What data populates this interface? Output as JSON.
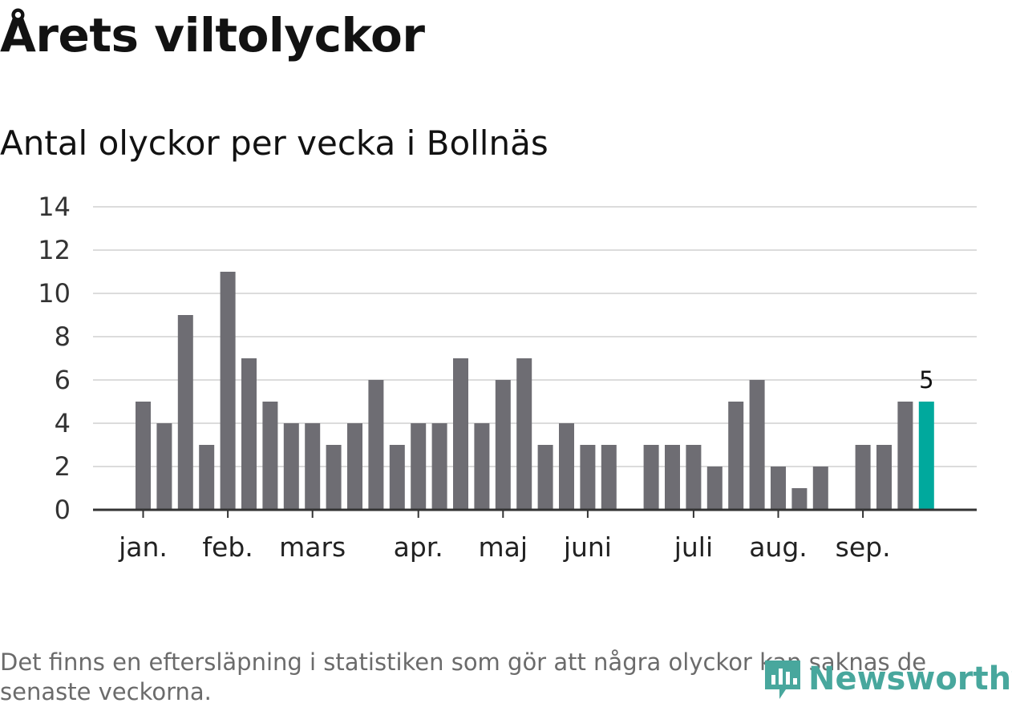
{
  "title": "Årets viltolyckor",
  "subtitle": "Antal olyckor per vecka i Bollnäs",
  "footnote": "Det finns en eftersläpning i statistiken som gör att några olyckor kan saknas de senaste veckorna.",
  "brand": {
    "name": "Newsworthy",
    "color": "#48a79d"
  },
  "colors": {
    "bar": "#6e6d73",
    "highlight": "#00a99d",
    "grid": "#dcdcdc",
    "axis": "#333333"
  },
  "chart_data": {
    "type": "bar",
    "values": [
      5,
      4,
      9,
      3,
      11,
      7,
      5,
      4,
      4,
      3,
      4,
      6,
      3,
      4,
      4,
      7,
      4,
      6,
      7,
      3,
      4,
      3,
      3,
      0,
      3,
      3,
      3,
      2,
      5,
      6,
      2,
      1,
      2,
      0,
      3,
      3,
      5,
      5
    ],
    "highlight_index": 37,
    "highlight_label": "5",
    "ylim": [
      0,
      14
    ],
    "yticks": [
      "0",
      "2",
      "4",
      "6",
      "8",
      "10",
      "12",
      "14"
    ],
    "month_ticks": [
      {
        "label": "jan.",
        "week": 0
      },
      {
        "label": "feb.",
        "week": 4
      },
      {
        "label": "mars",
        "week": 8
      },
      {
        "label": "apr.",
        "week": 13
      },
      {
        "label": "maj",
        "week": 17
      },
      {
        "label": "juni",
        "week": 21
      },
      {
        "label": "juli",
        "week": 26
      },
      {
        "label": "aug.",
        "week": 30
      },
      {
        "label": "sep.",
        "week": 34
      }
    ],
    "grid": true
  }
}
